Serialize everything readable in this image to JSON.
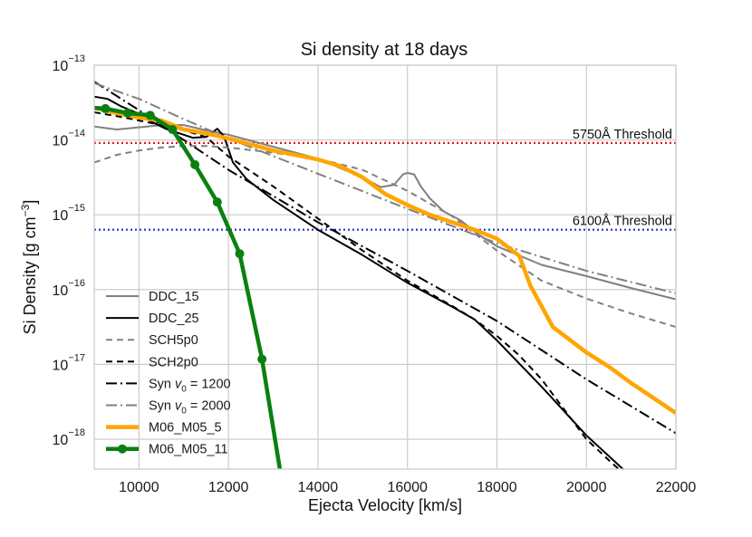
{
  "chart_data": {
    "type": "line",
    "title": "Si density at 18 days",
    "xlabel": "Ejecta Velocity [km/s]",
    "ylabel": "Si Density [g cm",
    "ylabel_sup": "−3",
    "ylabel_close": "]",
    "xlim": [
      9000,
      22000
    ],
    "ylim_log10": [
      -18.4,
      -13
    ],
    "x_ticks": [
      10000,
      12000,
      14000,
      16000,
      18000,
      20000,
      22000
    ],
    "x_tick_labels": [
      "10000",
      "12000",
      "14000",
      "16000",
      "18000",
      "20000",
      "22000"
    ],
    "y_ticks_exp": [
      -18,
      -17,
      -16,
      -15,
      -14,
      -13
    ],
    "y_tick_base": "10",
    "y_tick_exps": [
      "−18",
      "−17",
      "−16",
      "−15",
      "−14",
      "−13"
    ],
    "grid": true,
    "legend_position": "lower-left",
    "thresholds": [
      {
        "name": "5750",
        "label": "5750Å Threshold",
        "log10": -14.04,
        "color": "#e8191c"
      },
      {
        "name": "6100",
        "label": "6100Å Threshold",
        "log10": -15.2,
        "color": "#1f33d6"
      }
    ],
    "series": [
      {
        "name": "DDC_15",
        "legend": "DDC_15",
        "color": "#808080",
        "width": 2,
        "dash": "solid",
        "marker": false,
        "x": [
          9000,
          9500,
          10000,
          10500,
          11000,
          11500,
          12000,
          13000,
          14000,
          15000,
          15400,
          15700,
          15900,
          16000,
          16150,
          16300,
          16500,
          16800,
          17200,
          17600,
          18000,
          19000,
          20000,
          21000,
          22000
        ],
        "y": [
          -13.82,
          -13.86,
          -13.83,
          -13.8,
          -13.8,
          -13.87,
          -13.93,
          -14.09,
          -14.25,
          -14.5,
          -14.63,
          -14.6,
          -14.46,
          -14.44,
          -14.46,
          -14.62,
          -14.78,
          -14.95,
          -15.08,
          -15.27,
          -15.42,
          -15.67,
          -15.82,
          -15.98,
          -16.13
        ]
      },
      {
        "name": "DDC_25",
        "legend": "DDC_25",
        "color": "#000000",
        "width": 2,
        "dash": "solid",
        "marker": false,
        "x": [
          9000,
          9300,
          9600,
          10000,
          10300,
          10600,
          10900,
          11200,
          11500,
          11750,
          11900,
          12100,
          12400,
          13000,
          14000,
          15000,
          16000,
          17000,
          17500,
          18000,
          19000,
          20000,
          21000
        ],
        "y": [
          -13.42,
          -13.45,
          -13.55,
          -13.65,
          -13.76,
          -13.85,
          -13.91,
          -13.97,
          -13.96,
          -13.85,
          -13.95,
          -14.3,
          -14.52,
          -14.8,
          -15.2,
          -15.54,
          -15.91,
          -16.23,
          -16.4,
          -16.68,
          -17.3,
          -17.95,
          -18.5
        ]
      },
      {
        "name": "SCH5p0",
        "legend": "SCH5p0",
        "color": "#808080",
        "width": 2,
        "dash": "7,5",
        "marker": false,
        "x": [
          9000,
          9500,
          10000,
          10500,
          11000,
          11500,
          12000,
          13000,
          14000,
          15000,
          16000,
          17000,
          18000,
          19000,
          20000,
          21000,
          22000
        ],
        "y": [
          -14.3,
          -14.2,
          -14.14,
          -14.1,
          -14.08,
          -14.08,
          -14.1,
          -14.17,
          -14.25,
          -14.4,
          -14.68,
          -15.02,
          -15.48,
          -15.88,
          -16.12,
          -16.32,
          -16.5
        ]
      },
      {
        "name": "SCH2p0",
        "legend": "SCH2p0",
        "color": "#000000",
        "width": 2,
        "dash": "7,5",
        "marker": false,
        "x": [
          9000,
          9500,
          10000,
          10500,
          11000,
          11500,
          12000,
          13000,
          14000,
          15000,
          16000,
          17000,
          17500,
          18000,
          18500,
          19000,
          19500,
          20000,
          20500,
          21000
        ],
        "y": [
          -13.63,
          -13.68,
          -13.74,
          -13.8,
          -13.87,
          -13.96,
          -14.22,
          -14.62,
          -15.05,
          -15.48,
          -15.88,
          -16.22,
          -16.4,
          -16.62,
          -16.88,
          -17.2,
          -17.6,
          -18.0,
          -18.28,
          -18.55
        ]
      },
      {
        "name": "Syn1200",
        "legend": "Syn v₀ = 1200",
        "legend_pre": "Syn ",
        "legend_var": "v",
        "legend_sub": "0",
        "legend_post": " = 1200",
        "color": "#000000",
        "width": 2,
        "dash": "12,4,2,4",
        "marker": false,
        "x": [
          9000,
          10000,
          11000,
          12000,
          14000,
          16000,
          18000,
          20000,
          22000
        ],
        "y": [
          -13.22,
          -13.6,
          -14.0,
          -14.4,
          -15.1,
          -15.75,
          -16.42,
          -17.2,
          -17.92
        ]
      },
      {
        "name": "Syn2000",
        "legend": "Syn v₀ = 2000",
        "legend_pre": "Syn ",
        "legend_var": "v",
        "legend_sub": "0",
        "legend_post": " = 2000",
        "color": "#808080",
        "width": 2,
        "dash": "12,4,2,4",
        "marker": false,
        "x": [
          9000,
          10000,
          11000,
          12000,
          14000,
          16000,
          18000,
          20000,
          22000
        ],
        "y": [
          -13.24,
          -13.45,
          -13.72,
          -13.98,
          -14.45,
          -14.92,
          -15.38,
          -15.75,
          -16.05
        ]
      },
      {
        "name": "M06_M05_5",
        "legend": "M06_M05_5",
        "color": "#ffa500",
        "width": 4.5,
        "dash": "solid",
        "marker": false,
        "x": [
          9000,
          9500,
          10000,
          10500,
          11000,
          11500,
          12000,
          13000,
          14000,
          14500,
          15000,
          15500,
          16000,
          16500,
          17000,
          17500,
          18000,
          18500,
          18750,
          19250,
          20000,
          20500,
          21000,
          22000
        ],
        "y": [
          -13.57,
          -13.64,
          -13.7,
          -13.74,
          -13.86,
          -13.91,
          -13.98,
          -14.14,
          -14.26,
          -14.35,
          -14.5,
          -14.72,
          -14.87,
          -15.0,
          -15.1,
          -15.2,
          -15.32,
          -15.55,
          -15.95,
          -16.5,
          -16.84,
          -17.03,
          -17.25,
          -17.65
        ]
      },
      {
        "name": "M06_M05_11",
        "legend": "M06_M05_11",
        "color": "#0a8010",
        "width": 4.5,
        "dash": "solid",
        "marker": true,
        "x": [
          9000,
          9250,
          9750,
          10250,
          10750,
          11250,
          11750,
          12250,
          12750,
          13150
        ],
        "y": [
          -13.57,
          -13.58,
          -13.64,
          -13.67,
          -13.86,
          -14.33,
          -14.83,
          -15.52,
          -16.93,
          -18.4
        ],
        "marker_x": [
          9250,
          9750,
          10250,
          10750,
          11250,
          11750,
          12250,
          12750
        ]
      }
    ]
  }
}
